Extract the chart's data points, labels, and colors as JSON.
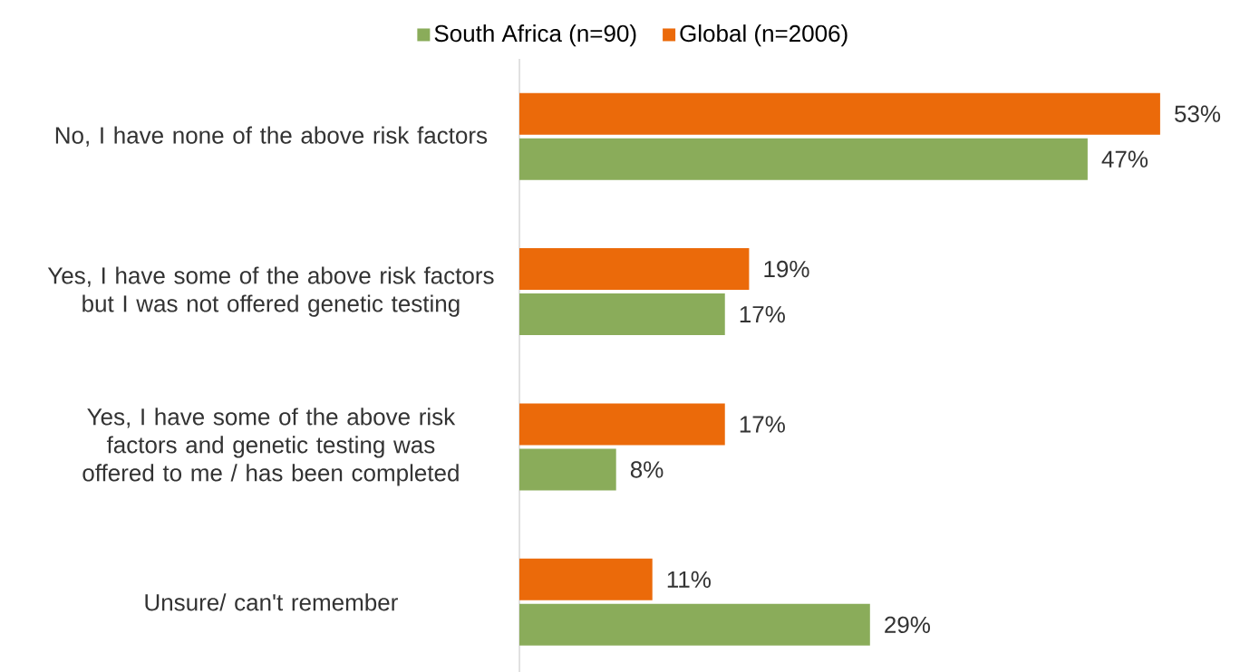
{
  "chart_data": {
    "type": "bar",
    "orientation": "horizontal",
    "categories": [
      "No, I have none of the above risk factors",
      "Yes, I have some of the above risk factors but I was not offered genetic testing",
      "Yes, I have some of the above risk factors and genetic testing was offered to me / has been completed",
      "Unsure/ can't remember"
    ],
    "series": [
      {
        "name": "South Africa (n=90)",
        "color": "#8aac5a",
        "values": [
          47,
          17,
          8,
          29
        ],
        "value_labels": [
          "47%",
          "17%",
          "8%",
          "29%"
        ]
      },
      {
        "name": "Global (n=2006)",
        "color": "#eb6a0a",
        "values": [
          53,
          19,
          17,
          11
        ],
        "value_labels": [
          "53%",
          "19%",
          "17%",
          "11%"
        ]
      }
    ],
    "legend": "top"
  }
}
